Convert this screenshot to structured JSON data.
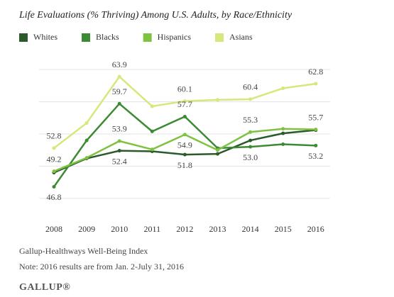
{
  "chart_data": {
    "type": "line",
    "title": "Life Evaluations (% Thriving) Among U.S. Adults, by Race/Ethnicity",
    "categories": [
      "2008",
      "2009",
      "2010",
      "2011",
      "2012",
      "2013",
      "2014",
      "2015",
      "2016"
    ],
    "series": [
      {
        "name": "Whites",
        "color": "#2b5a2b",
        "values": [
          49.0,
          51.2,
          52.4,
          52.3,
          51.8,
          51.9,
          54.0,
          55.1,
          55.6
        ],
        "value_labels": [
          null,
          null,
          "52.4",
          null,
          "51.8",
          null,
          null,
          null,
          null
        ]
      },
      {
        "name": "Blacks",
        "color": "#3c8a34",
        "values": [
          46.8,
          54.0,
          59.7,
          55.4,
          57.7,
          52.8,
          53.0,
          53.4,
          53.2
        ],
        "value_labels": [
          "46.8",
          null,
          "59.7",
          null,
          "57.7",
          null,
          "53.0",
          null,
          "53.2"
        ]
      },
      {
        "name": "Hispanics",
        "color": "#7fc241",
        "values": [
          49.2,
          51.3,
          53.9,
          52.6,
          54.9,
          52.5,
          55.3,
          55.8,
          55.7
        ],
        "value_labels": [
          "49.2",
          null,
          "53.9",
          null,
          "54.9",
          null,
          "55.3",
          null,
          "55.7"
        ]
      },
      {
        "name": "Asians",
        "color": "#d5e87c",
        "values": [
          52.8,
          56.7,
          63.9,
          59.3,
          60.1,
          60.3,
          60.4,
          62.1,
          62.8
        ],
        "value_labels": [
          "52.8",
          null,
          "63.9",
          null,
          "60.1",
          null,
          "60.4",
          null,
          "62.8"
        ]
      }
    ],
    "ylim": [
      43,
      67
    ],
    "yticks": [
      45,
      50,
      55,
      60,
      65
    ],
    "grid": true,
    "source": "Gallup-Healthways Well-Being Index",
    "note": "Note: 2016 results are from Jan. 2-July 31, 2016",
    "brand": "GALLUP®"
  }
}
